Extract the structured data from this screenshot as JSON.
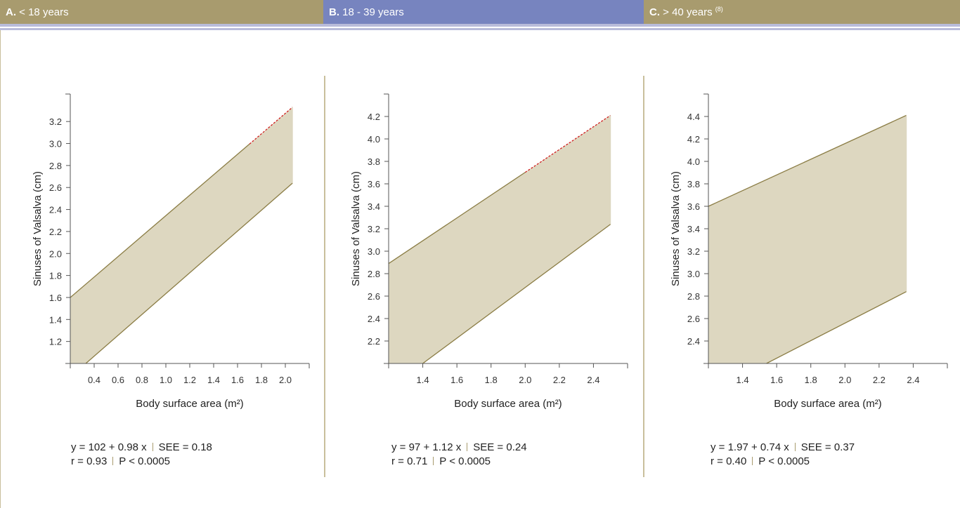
{
  "colors": {
    "header_a": "#a89b6e",
    "header_b": "#7784bf",
    "header_c": "#a89b6e",
    "accent_rule": "#b9bcda",
    "band_fill": "#ddd7c0",
    "band_line": "#8b7d45",
    "axis": "#555555",
    "extrapolation": "#d02020",
    "divider": "#c9bf9c"
  },
  "headers": [
    {
      "letter": "A.",
      "text": " < 18 years",
      "ref": ""
    },
    {
      "letter": "B.",
      "text": " 18 - 39 years",
      "ref": ""
    },
    {
      "letter": "C.",
      "text": " > 40 years ",
      "ref": "(8)"
    }
  ],
  "stats": [
    {
      "eq": "y = 102 + 0.98 x",
      "see": "SEE = 0.18",
      "r": "r = 0.93",
      "p": "P < 0.0005"
    },
    {
      "eq": "y = 97 + 1.12 x",
      "see": "SEE = 0.24",
      "r": "r = 0.71",
      "p": "P < 0.0005"
    },
    {
      "eq": "y = 1.97 + 0.74 x",
      "see": "SEE = 0.37",
      "r": "r = 0.40",
      "p": "P < 0.0005"
    }
  ],
  "chart_data": [
    {
      "type": "area",
      "title": "A. < 18 years",
      "xlabel": "Body surface area (m²)",
      "ylabel": "Sinuses of Valsalva (cm)",
      "xlim": [
        0.2,
        2.2
      ],
      "ylim": [
        1.0,
        3.45
      ],
      "xticks": [
        "0.4",
        "0.6",
        "0.8",
        "1.0",
        "1.2",
        "1.4",
        "1.6",
        "1.8",
        "2.0"
      ],
      "yticks": [
        "1.2",
        "1.4",
        "1.6",
        "1.8",
        "2.0",
        "2.2",
        "2.4",
        "2.6",
        "2.8",
        "3.0",
        "3.2"
      ],
      "upper": {
        "x": [
          0.2,
          2.06
        ],
        "y": [
          1.6,
          3.33
        ]
      },
      "lower": {
        "x": [
          0.33,
          2.06
        ],
        "y": [
          1.0,
          2.64
        ]
      },
      "dashed_upper_from_x": 1.7
    },
    {
      "type": "area",
      "title": "B. 18 - 39 years",
      "xlabel": "Body surface area (m²)",
      "ylabel": "Sinuses of Valsalva (cm)",
      "xlim": [
        1.2,
        2.6
      ],
      "ylim": [
        2.0,
        4.4
      ],
      "xticks": [
        "1.4",
        "1.6",
        "1.8",
        "2.0",
        "2.2",
        "2.4"
      ],
      "yticks": [
        "2.2",
        "2.4",
        "2.6",
        "2.8",
        "3.0",
        "3.2",
        "3.4",
        "3.6",
        "3.8",
        "4.0",
        "4.2"
      ],
      "upper": {
        "x": [
          1.2,
          2.5
        ],
        "y": [
          2.89,
          4.21
        ]
      },
      "lower": {
        "x": [
          1.4,
          2.5
        ],
        "y": [
          2.0,
          3.24
        ]
      },
      "dashed_upper_from_x": 2.0
    },
    {
      "type": "area",
      "title": "C. > 40 years (8)",
      "xlabel": "Body surface area (m²)",
      "ylabel": "Sinuses of Valsalva (cm)",
      "xlim": [
        1.2,
        2.6
      ],
      "ylim": [
        2.2,
        4.6
      ],
      "xticks": [
        "1.4",
        "1.6",
        "1.8",
        "2.0",
        "2.2",
        "2.4"
      ],
      "yticks": [
        "2.4",
        "2.6",
        "2.8",
        "3.0",
        "3.2",
        "3.4",
        "3.6",
        "3.8",
        "4.0",
        "4.2",
        "4.4"
      ],
      "upper": {
        "x": [
          1.2,
          2.36
        ],
        "y": [
          3.6,
          4.41
        ]
      },
      "lower": {
        "x": [
          1.54,
          2.36
        ],
        "y": [
          2.2,
          2.84
        ]
      },
      "dashed_upper_from_x": null
    }
  ]
}
